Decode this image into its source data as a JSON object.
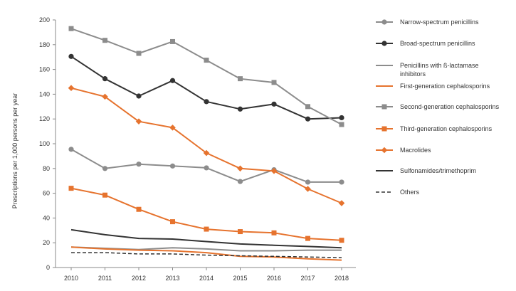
{
  "chart_data": {
    "type": "line",
    "title": "",
    "xlabel": "",
    "ylabel": "Prescriptions per 1,000 persons per year",
    "ylim": [
      0,
      200
    ],
    "yticks": [
      0,
      20,
      40,
      60,
      80,
      100,
      120,
      140,
      160,
      180,
      200
    ],
    "grid": false,
    "legend_position": "right",
    "x": [
      "2010",
      "2011",
      "2012",
      "2013",
      "2014",
      "2015",
      "2016",
      "2017",
      "2018"
    ],
    "series": [
      {
        "name": "Narrow-spectrum penicillins",
        "color": "#8c8c8c",
        "marker": "circle",
        "dash": false,
        "values": [
          95.5,
          80,
          83.5,
          82,
          80.5,
          69.5,
          79,
          69,
          69
        ]
      },
      {
        "name": "Broad-spectrum penicillins",
        "color": "#333333",
        "marker": "circle",
        "dash": false,
        "values": [
          170.5,
          152.5,
          138.5,
          151,
          134,
          128,
          132,
          120,
          121
        ]
      },
      {
        "name": "Penicillins with ß-lactamase inhibitors",
        "color": "#8c8c8c",
        "marker": "none",
        "dash": false,
        "values": [
          16.5,
          15.5,
          14.5,
          16,
          15,
          13.5,
          13.5,
          14,
          14
        ]
      },
      {
        "name": "First-generation cephalosporins",
        "color": "#e6732e",
        "marker": "none",
        "dash": false,
        "values": [
          16.5,
          15,
          14,
          13.5,
          12,
          9,
          8.5,
          7,
          6
        ]
      },
      {
        "name": "Second-generation cephalosporins",
        "color": "#8c8c8c",
        "marker": "square",
        "dash": false,
        "values": [
          193,
          183.5,
          173,
          182.5,
          167.5,
          152.5,
          149.5,
          130,
          115.5
        ]
      },
      {
        "name": "Third-generation cephalosporins",
        "color": "#e6732e",
        "marker": "square",
        "dash": false,
        "values": [
          64,
          58.5,
          47,
          37,
          31,
          29,
          28,
          23.5,
          22
        ]
      },
      {
        "name": "Macrolides",
        "color": "#e6732e",
        "marker": "diamond",
        "dash": false,
        "values": [
          145,
          138,
          118,
          113,
          92.5,
          80,
          78,
          63.5,
          52
        ]
      },
      {
        "name": "Sulfonamides/trimethoprim",
        "color": "#333333",
        "marker": "none",
        "dash": false,
        "values": [
          30.5,
          26.5,
          23.5,
          23,
          21,
          19,
          18,
          17,
          16
        ]
      },
      {
        "name": "Others",
        "color": "#333333",
        "marker": "none",
        "dash": true,
        "values": [
          12,
          12,
          11,
          11,
          10,
          9.5,
          9,
          8.5,
          8
        ]
      }
    ]
  }
}
